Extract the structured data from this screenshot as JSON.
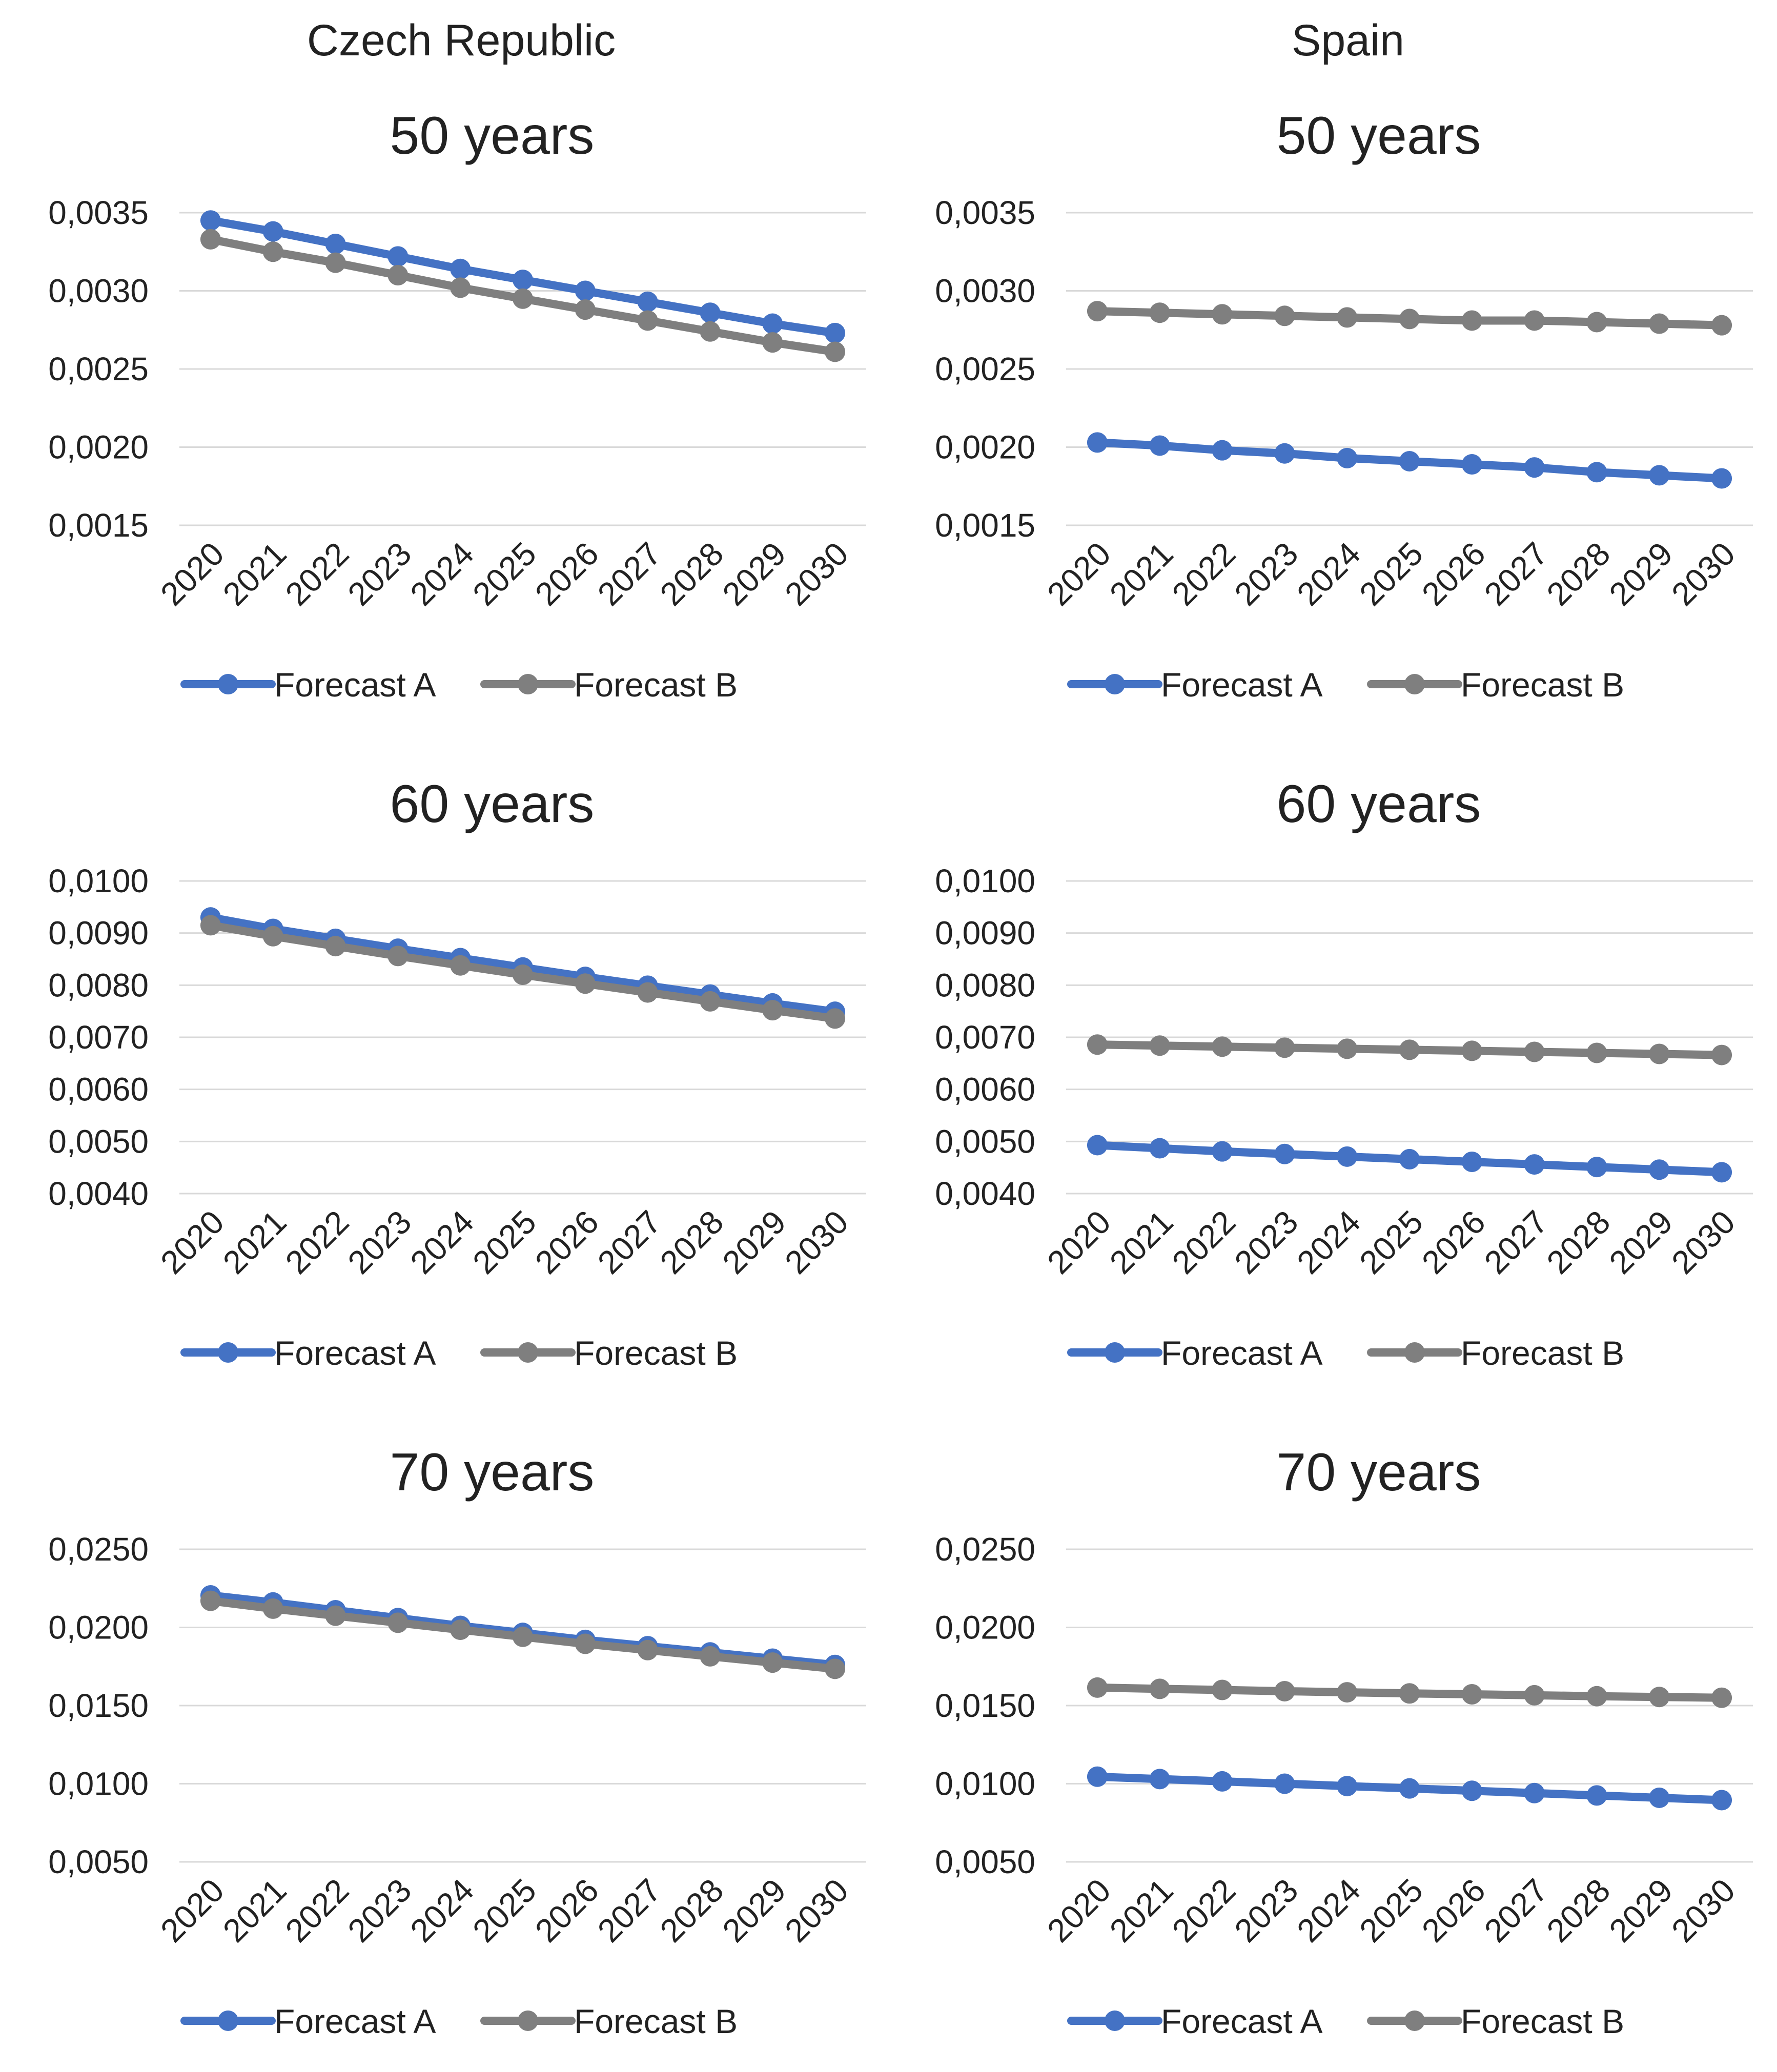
{
  "countries": [
    "Czech Republic",
    "Spain"
  ],
  "chart_data": [
    {
      "type": "line",
      "country": "Czech Republic",
      "title": "50 years",
      "categories": [
        "2020",
        "2021",
        "2022",
        "2023",
        "2024",
        "2025",
        "2026",
        "2027",
        "2028",
        "2029",
        "2030"
      ],
      "ylim": [
        0.0015,
        0.0035
      ],
      "yticks": [
        "0,0035",
        "0,0030",
        "0,0025",
        "0,0020",
        "0,0015"
      ],
      "ytick_values": [
        0.0035,
        0.003,
        0.0025,
        0.002,
        0.0015
      ],
      "series": [
        {
          "name": "Forecast A",
          "color": "#4472C4",
          "values": [
            0.00345,
            0.00338,
            0.0033,
            0.00322,
            0.00314,
            0.00307,
            0.003,
            0.00293,
            0.00286,
            0.00279,
            0.00273
          ]
        },
        {
          "name": "Forecast B",
          "color": "#7F7F7F",
          "values": [
            0.00333,
            0.00325,
            0.00318,
            0.0031,
            0.00302,
            0.00295,
            0.00288,
            0.00281,
            0.00274,
            0.00267,
            0.00261
          ]
        }
      ]
    },
    {
      "type": "line",
      "country": "Spain",
      "title": "50 years",
      "categories": [
        "2020",
        "2021",
        "2022",
        "2023",
        "2024",
        "2025",
        "2026",
        "2027",
        "2028",
        "2029",
        "2030"
      ],
      "ylim": [
        0.0015,
        0.0035
      ],
      "yticks": [
        "0,0035",
        "0,0030",
        "0,0025",
        "0,0020",
        "0,0015"
      ],
      "ytick_values": [
        0.0035,
        0.003,
        0.0025,
        0.002,
        0.0015
      ],
      "series": [
        {
          "name": "Forecast A",
          "color": "#4472C4",
          "values": [
            0.00203,
            0.00201,
            0.00198,
            0.00196,
            0.00193,
            0.00191,
            0.00189,
            0.00187,
            0.00184,
            0.00182,
            0.0018
          ]
        },
        {
          "name": "Forecast B",
          "color": "#7F7F7F",
          "values": [
            0.00287,
            0.00286,
            0.00285,
            0.00284,
            0.00283,
            0.00282,
            0.00281,
            0.00281,
            0.0028,
            0.00279,
            0.00278
          ]
        }
      ]
    },
    {
      "type": "line",
      "country": "Czech Republic",
      "title": "60 years",
      "categories": [
        "2020",
        "2021",
        "2022",
        "2023",
        "2024",
        "2025",
        "2026",
        "2027",
        "2028",
        "2029",
        "2030"
      ],
      "ylim": [
        0.004,
        0.01
      ],
      "yticks": [
        "0,0100",
        "0,0090",
        "0,0080",
        "0,0070",
        "0,0060",
        "0,0050",
        "0,0040"
      ],
      "ytick_values": [
        0.01,
        0.009,
        0.008,
        0.007,
        0.006,
        0.005,
        0.004
      ],
      "series": [
        {
          "name": "Forecast A",
          "color": "#4472C4",
          "values": [
            0.0093,
            0.00908,
            0.00889,
            0.0087,
            0.00852,
            0.00834,
            0.00816,
            0.00799,
            0.00782,
            0.00765,
            0.00749
          ]
        },
        {
          "name": "Forecast B",
          "color": "#7F7F7F",
          "values": [
            0.00915,
            0.00894,
            0.00875,
            0.00856,
            0.00838,
            0.0082,
            0.00803,
            0.00786,
            0.00769,
            0.00752,
            0.00736
          ]
        }
      ]
    },
    {
      "type": "line",
      "country": "Spain",
      "title": "60 years",
      "categories": [
        "2020",
        "2021",
        "2022",
        "2023",
        "2024",
        "2025",
        "2026",
        "2027",
        "2028",
        "2029",
        "2030"
      ],
      "ylim": [
        0.004,
        0.01
      ],
      "yticks": [
        "0,0100",
        "0,0090",
        "0,0080",
        "0,0070",
        "0,0060",
        "0,0050",
        "0,0040"
      ],
      "ytick_values": [
        0.01,
        0.009,
        0.008,
        0.007,
        0.006,
        0.005,
        0.004
      ],
      "series": [
        {
          "name": "Forecast A",
          "color": "#4472C4",
          "values": [
            0.00493,
            0.00487,
            0.00481,
            0.00476,
            0.00471,
            0.00466,
            0.00461,
            0.00456,
            0.00451,
            0.00446,
            0.00441
          ]
        },
        {
          "name": "Forecast B",
          "color": "#7F7F7F",
          "values": [
            0.00686,
            0.00684,
            0.00682,
            0.0068,
            0.00678,
            0.00676,
            0.00674,
            0.00672,
            0.0067,
            0.00668,
            0.00666
          ]
        }
      ]
    },
    {
      "type": "line",
      "country": "Czech Republic",
      "title": "70 years",
      "categories": [
        "2020",
        "2021",
        "2022",
        "2023",
        "2024",
        "2025",
        "2026",
        "2027",
        "2028",
        "2029",
        "2030"
      ],
      "ylim": [
        0.005,
        0.025
      ],
      "yticks": [
        "0,0250",
        "0,0200",
        "0,0150",
        "0,0100",
        "0,0050"
      ],
      "ytick_values": [
        0.025,
        0.02,
        0.015,
        0.01,
        0.005
      ],
      "series": [
        {
          "name": "Forecast A",
          "color": "#4472C4",
          "values": [
            0.02205,
            0.0216,
            0.0211,
            0.0206,
            0.0201,
            0.01965,
            0.0192,
            0.0188,
            0.0184,
            0.018,
            0.0176
          ]
        },
        {
          "name": "Forecast B",
          "color": "#7F7F7F",
          "values": [
            0.0217,
            0.0212,
            0.02075,
            0.0203,
            0.01985,
            0.0194,
            0.01895,
            0.01855,
            0.01815,
            0.01775,
            0.01735
          ]
        }
      ]
    },
    {
      "type": "line",
      "country": "Spain",
      "title": "70 years",
      "categories": [
        "2020",
        "2021",
        "2022",
        "2023",
        "2024",
        "2025",
        "2026",
        "2027",
        "2028",
        "2029",
        "2030"
      ],
      "ylim": [
        0.005,
        0.025
      ],
      "yticks": [
        "0,0250",
        "0,0200",
        "0,0150",
        "0,0100",
        "0,0050"
      ],
      "ytick_values": [
        0.025,
        0.02,
        0.015,
        0.01,
        0.005
      ],
      "series": [
        {
          "name": "Forecast A",
          "color": "#4472C4",
          "values": [
            0.01045,
            0.0103,
            0.01015,
            0.01,
            0.00985,
            0.0097,
            0.00955,
            0.0094,
            0.00925,
            0.0091,
            0.00895
          ]
        },
        {
          "name": "Forecast B",
          "color": "#7F7F7F",
          "values": [
            0.01615,
            0.01607,
            0.016,
            0.01592,
            0.01585,
            0.01578,
            0.01572,
            0.01566,
            0.0156,
            0.01555,
            0.0155
          ]
        }
      ]
    }
  ]
}
